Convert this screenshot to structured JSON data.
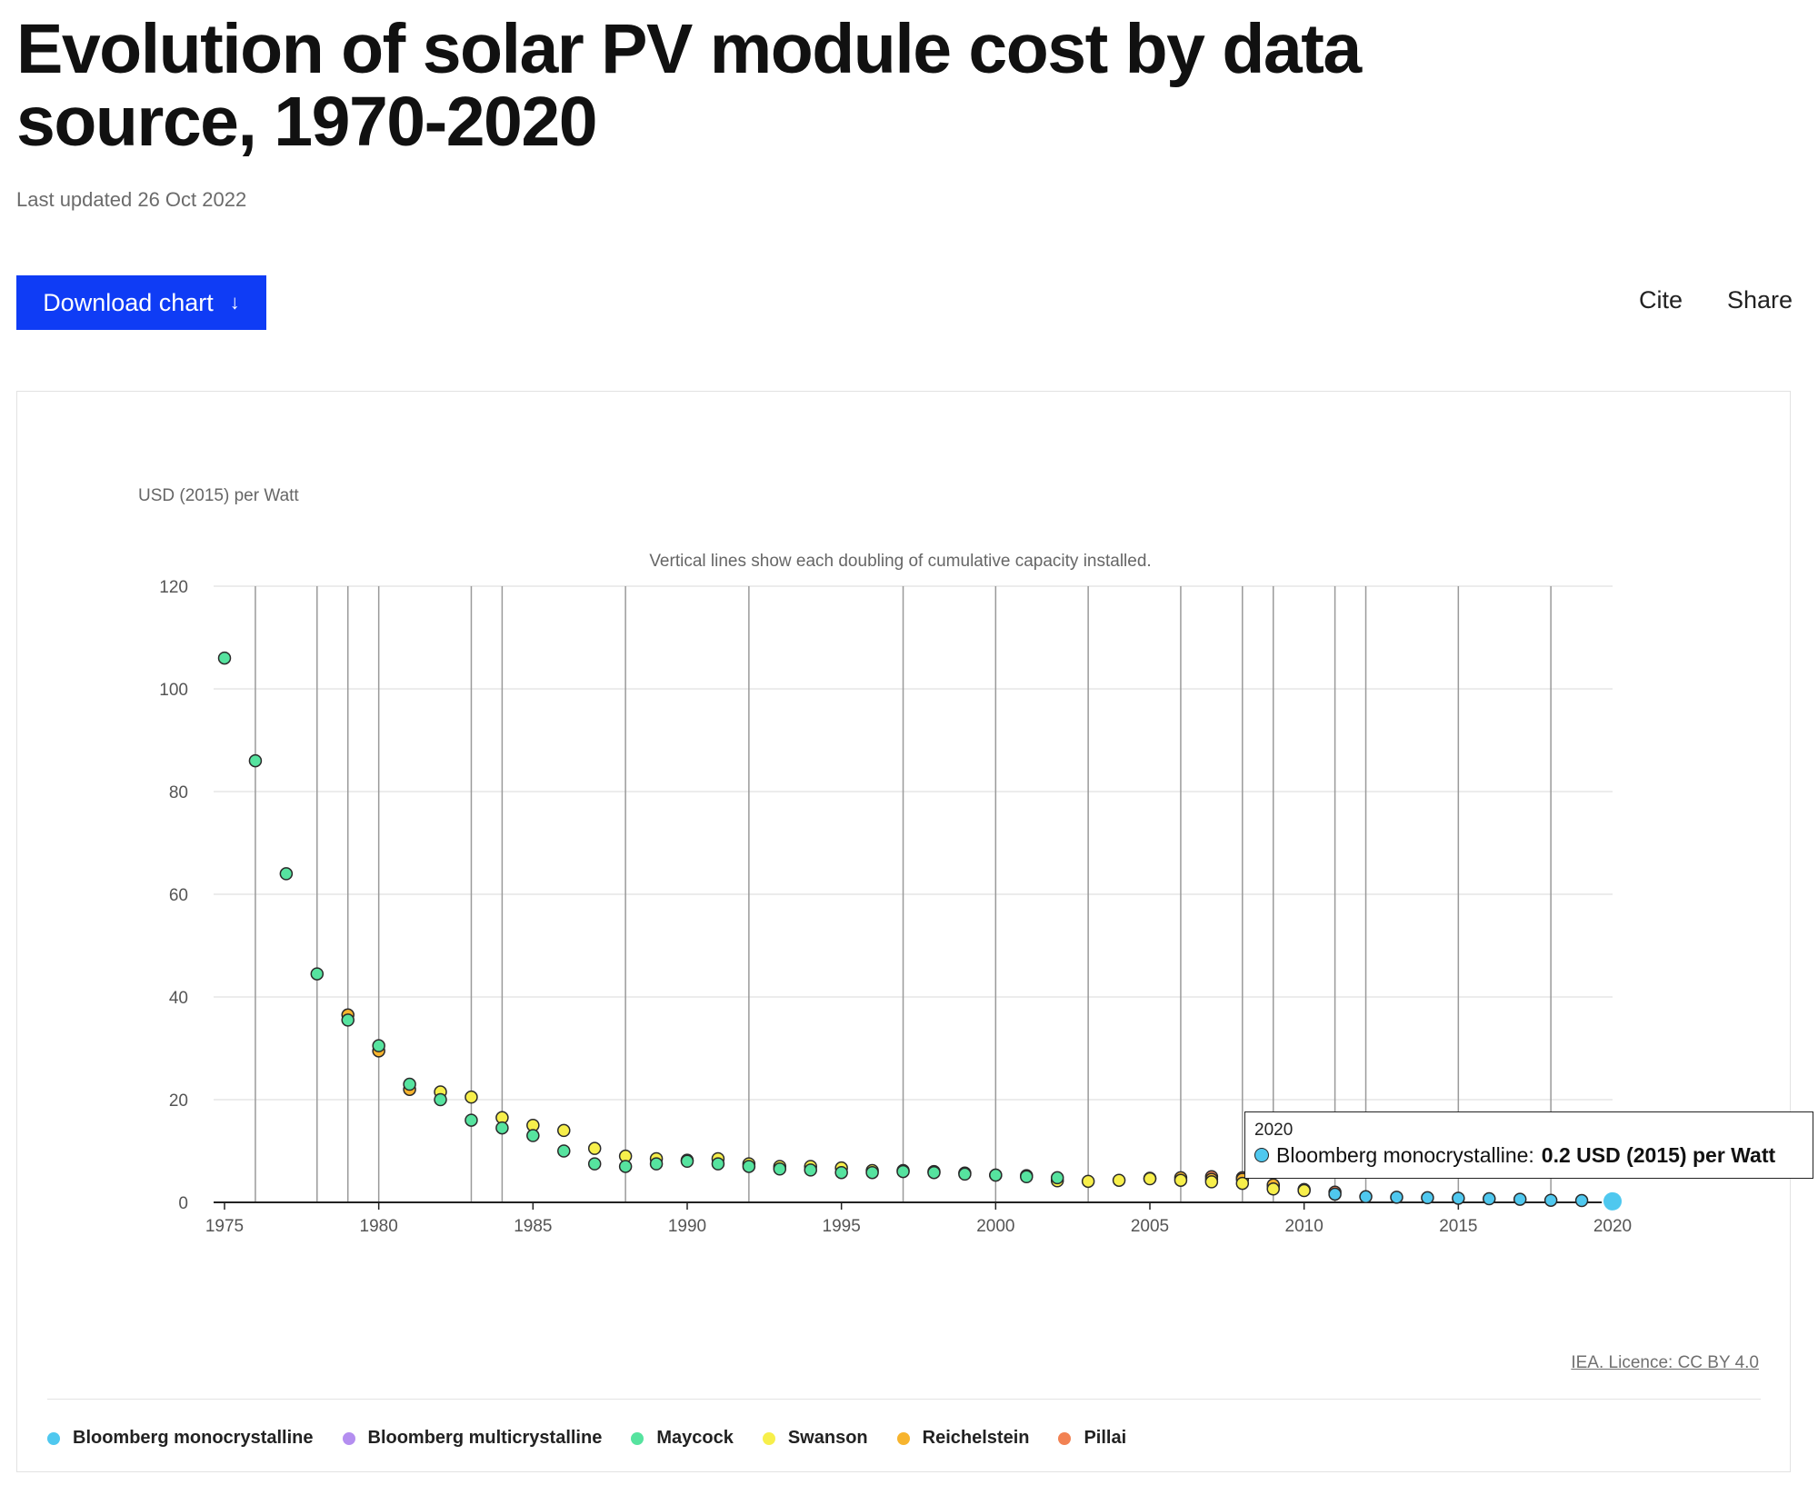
{
  "page": {
    "title": "Evolution of solar PV module cost by data source, 1970-2020",
    "last_updated": "Last updated 26 Oct 2022",
    "download_label": "Download chart",
    "download_icon": "arrow-down-icon",
    "cite_label": "Cite",
    "share_label": "Share",
    "licence": "IEA. Licence: CC BY 4.0"
  },
  "tooltip": {
    "year": "2020",
    "series": "Bloomberg monocrystalline:",
    "value": "0.2 USD (2015) per Watt"
  },
  "chart_data": {
    "type": "scatter",
    "title": "Evolution of solar PV module cost by data source, 1970-2020",
    "ylabel": "USD (2015) per Watt",
    "xlabel": "",
    "annotation": "Vertical lines show each doubling of cumulative capacity installed.",
    "xlim": [
      1975,
      2020
    ],
    "ylim": [
      0,
      120
    ],
    "xticks": [
      1975,
      1980,
      1985,
      1990,
      1995,
      2000,
      2005,
      2010,
      2015,
      2020
    ],
    "yticks": [
      0,
      20,
      40,
      60,
      80,
      100,
      120
    ],
    "grid": true,
    "legend_position": "bottom",
    "doubling_lines": [
      1976,
      1978,
      1979,
      1980,
      1983,
      1984,
      1988,
      1992,
      1997,
      2000,
      2003,
      2006,
      2008,
      2009,
      2011,
      2012,
      2015,
      2018
    ],
    "series": [
      {
        "name": "Bloomberg monocrystalline",
        "color": "#4fc8ef",
        "points": [
          [
            2011,
            1.6
          ],
          [
            2012,
            1.1
          ],
          [
            2013,
            1.0
          ],
          [
            2014,
            0.9
          ],
          [
            2015,
            0.8
          ],
          [
            2016,
            0.7
          ],
          [
            2017,
            0.6
          ],
          [
            2018,
            0.4
          ],
          [
            2019,
            0.35
          ],
          [
            2020,
            0.2
          ]
        ]
      },
      {
        "name": "Bloomberg multicrystalline",
        "color": "#b48ef0",
        "points": []
      },
      {
        "name": "Maycock",
        "color": "#56e39f",
        "points": [
          [
            1975,
            106
          ],
          [
            1976,
            86
          ],
          [
            1977,
            64
          ],
          [
            1978,
            44.5
          ],
          [
            1979,
            35.5
          ],
          [
            1980,
            30.5
          ],
          [
            1981,
            23
          ],
          [
            1982,
            20
          ],
          [
            1983,
            16
          ],
          [
            1984,
            14.5
          ],
          [
            1985,
            13
          ],
          [
            1986,
            10
          ],
          [
            1987,
            7.5
          ],
          [
            1988,
            7
          ],
          [
            1989,
            7.5
          ],
          [
            1990,
            8
          ],
          [
            1991,
            7.5
          ],
          [
            1992,
            7
          ],
          [
            1993,
            6.5
          ],
          [
            1994,
            6.3
          ],
          [
            1995,
            5.8
          ],
          [
            1996,
            5.8
          ],
          [
            1997,
            6
          ],
          [
            1998,
            5.8
          ],
          [
            1999,
            5.5
          ],
          [
            2000,
            5.3
          ],
          [
            2001,
            5
          ],
          [
            2002,
            4.8
          ]
        ]
      },
      {
        "name": "Swanson",
        "color": "#f7ef4b",
        "points": [
          [
            1982,
            21.5
          ],
          [
            1983,
            20.5
          ],
          [
            1984,
            16.5
          ],
          [
            1985,
            15
          ],
          [
            1986,
            14
          ],
          [
            1987,
            10.5
          ],
          [
            1988,
            9
          ],
          [
            1989,
            8.5
          ],
          [
            1990,
            8.2
          ],
          [
            1991,
            8.5
          ],
          [
            1992,
            7.5
          ],
          [
            1993,
            7
          ],
          [
            1994,
            7
          ],
          [
            1995,
            6.7
          ],
          [
            1996,
            6.2
          ],
          [
            1997,
            6.2
          ],
          [
            1998,
            6
          ],
          [
            1999,
            5.7
          ],
          [
            2000,
            5.3
          ],
          [
            2001,
            5.2
          ],
          [
            2002,
            4.2
          ],
          [
            2003,
            4.1
          ],
          [
            2004,
            4.3
          ],
          [
            2005,
            4.6
          ],
          [
            2006,
            4.3
          ],
          [
            2007,
            4
          ],
          [
            2008,
            3.7
          ],
          [
            2009,
            2.6
          ],
          [
            2010,
            2.3
          ]
        ]
      },
      {
        "name": "Reichelstein",
        "color": "#f7b42e",
        "points": [
          [
            1979,
            36.5
          ],
          [
            1980,
            29.5
          ],
          [
            1981,
            22
          ],
          [
            2005,
            4.7
          ],
          [
            2006,
            4.8
          ],
          [
            2007,
            4.5
          ],
          [
            2008,
            4.5
          ],
          [
            2009,
            3.4
          ],
          [
            2010,
            2.5
          ]
        ]
      },
      {
        "name": "Pillai",
        "color": "#f28253",
        "points": [
          [
            2007,
            5
          ],
          [
            2008,
            4.8
          ],
          [
            2009,
            3.2
          ],
          [
            2011,
            2.0
          ]
        ]
      }
    ]
  }
}
